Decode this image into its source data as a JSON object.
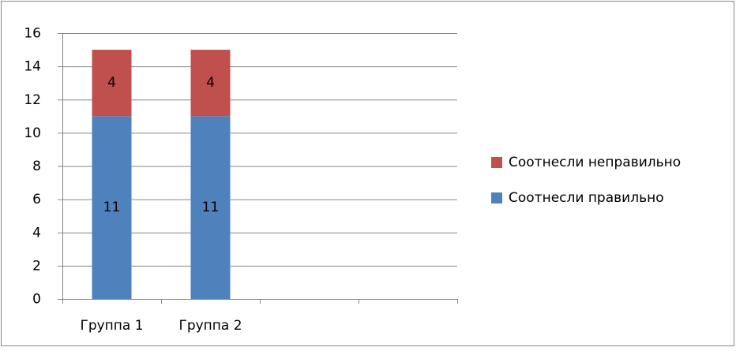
{
  "chart_data": {
    "type": "stacked_bar",
    "categories": [
      "Группа 1",
      "Группа 2",
      null,
      null
    ],
    "series": [
      {
        "name": "Соотнесли правильно",
        "color": "#4f81bd",
        "values": [
          11,
          11,
          null,
          null
        ]
      },
      {
        "name": "Соотнесли неправильно",
        "color": "#c0504d",
        "values": [
          4,
          4,
          null,
          null
        ]
      }
    ],
    "ylim": [
      0,
      16
    ],
    "yticks": [
      0,
      2,
      4,
      6,
      8,
      10,
      12,
      14,
      16
    ],
    "grid": true,
    "legend": "right"
  }
}
